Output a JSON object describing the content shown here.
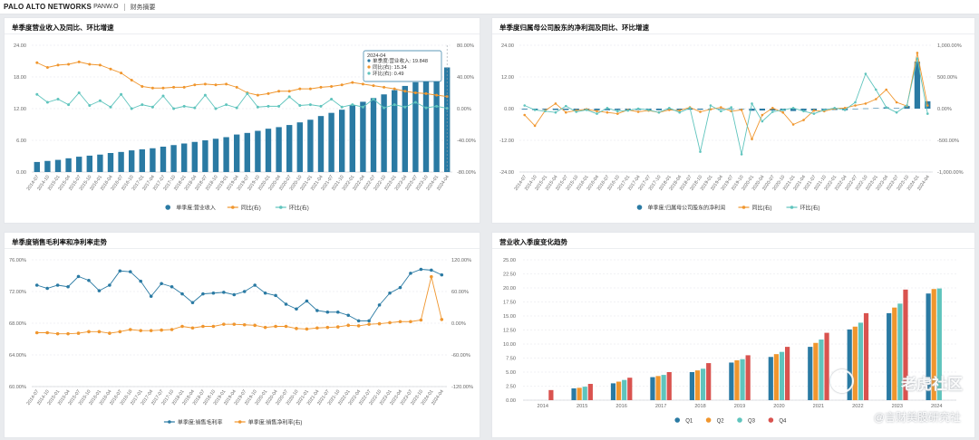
{
  "header": {
    "brand": "PALO ALTO NETWORKS",
    "ticker": "PANW.O",
    "section": "财务摘要"
  },
  "colors": {
    "blue": "#2a7aa3",
    "orange": "#f0962e",
    "teal": "#5fc4bd",
    "red": "#d9534f"
  },
  "watermark": {
    "main": "老虎社区",
    "sub": "@言财美股研究社"
  },
  "panels": [
    {
      "title": "单季度营业收入及同比、环比增速"
    },
    {
      "title": "单季度归属母公司股东的净利润及同比、环比增速"
    },
    {
      "title": "单季度销售毛利率和净利率走势"
    },
    {
      "title": "营业收入季度变化趋势"
    }
  ],
  "tooltip": {
    "date": "2024-04",
    "rows": [
      "单季度:营业收入: 19.848",
      "同比(右): 15.34",
      "环比(右): 0.49"
    ]
  },
  "chart_data": [
    {
      "type": "bar",
      "title": "单季度营业收入及同比、环比增速",
      "xlabels": [
        "2014-07",
        "2014-10",
        "2015-01",
        "2015-04",
        "2015-07",
        "2015-10",
        "2016-01",
        "2016-04",
        "2016-07",
        "2016-10",
        "2017-01",
        "2017-04",
        "2017-07",
        "2017-10",
        "2018-01",
        "2018-04",
        "2018-07",
        "2018-10",
        "2019-01",
        "2019-04",
        "2019-07",
        "2019-10",
        "2020-01",
        "2020-04",
        "2020-07",
        "2020-10",
        "2021-01",
        "2021-04",
        "2021-07",
        "2021-10",
        "2022-01",
        "2022-04",
        "2022-07",
        "2022-10",
        "2023-01",
        "2023-04",
        "2023-07",
        "2023-10",
        "2024-01",
        "2024-04"
      ],
      "left_axis": {
        "ticks": [
          "0.00",
          "6.00",
          "12.00",
          "18.00",
          "24.00"
        ],
        "min": 0,
        "max": 24
      },
      "right_axis": {
        "ticks": [
          "-80.00%",
          "-40.00%",
          "0.00%",
          "40.00%",
          "80.00%"
        ],
        "min": -80,
        "max": 80
      },
      "series": [
        {
          "name": "单季度:营业收入",
          "kind": "bar",
          "axis": "left",
          "values": [
            1.9,
            2.1,
            2.3,
            2.6,
            2.9,
            3.1,
            3.3,
            3.6,
            3.8,
            4.1,
            4.3,
            4.5,
            4.8,
            5.1,
            5.4,
            5.7,
            6.0,
            6.3,
            6.6,
            7.1,
            7.4,
            7.8,
            8.2,
            8.5,
            8.9,
            9.4,
            9.9,
            10.6,
            11.2,
            11.8,
            12.6,
            13.3,
            14.0,
            14.7,
            15.5,
            16.3,
            17.0,
            17.9,
            19.0,
            19.8
          ]
        },
        {
          "name": "同比(右)",
          "kind": "line",
          "axis": "right",
          "values": [
            58,
            52,
            55,
            56,
            59,
            56,
            55,
            50,
            45,
            36,
            28,
            26,
            26,
            27,
            27,
            30,
            31,
            30,
            31,
            27,
            20,
            17,
            19,
            22,
            22,
            25,
            25,
            27,
            28,
            30,
            33,
            31,
            29,
            27,
            25,
            22,
            20,
            19,
            17,
            15.34
          ]
        },
        {
          "name": "环比(右)",
          "kind": "line",
          "axis": "right",
          "values": [
            18,
            8,
            12,
            5,
            20,
            4,
            10,
            2,
            18,
            0,
            5,
            2,
            16,
            0,
            3,
            1,
            17,
            0,
            5,
            1,
            19,
            2,
            3,
            3,
            15,
            4,
            5,
            3,
            12,
            2,
            5,
            2,
            12,
            1,
            5,
            2,
            8,
            1,
            3,
            0.49
          ]
        }
      ],
      "legend": [
        "单季度:营业收入",
        "同比(右)",
        "环比(右)"
      ]
    },
    {
      "type": "bar",
      "title": "单季度归属母公司股东的净利润及同比、环比增速",
      "xlabels": [
        "2014-07",
        "2014-10",
        "2015-01",
        "2015-04",
        "2015-07",
        "2015-10",
        "2016-01",
        "2016-04",
        "2016-07",
        "2016-10",
        "2017-01",
        "2017-04",
        "2017-07",
        "2017-10",
        "2018-01",
        "2018-04",
        "2018-07",
        "2018-10",
        "2019-01",
        "2019-04",
        "2019-07",
        "2019-10",
        "2020-01",
        "2020-04",
        "2020-07",
        "2020-10",
        "2021-01",
        "2021-04",
        "2021-07",
        "2021-10",
        "2022-01",
        "2022-04",
        "2022-07",
        "2022-10",
        "2023-01",
        "2023-04",
        "2023-07",
        "2023-10",
        "2024-01",
        "2024-04"
      ],
      "left_axis": {
        "ticks": [
          "-24.00",
          "-12.00",
          "0.00",
          "12.00",
          "24.00"
        ],
        "min": -24,
        "max": 24
      },
      "right_axis": {
        "ticks": [
          "-1,000.00%",
          "-500.00%",
          "0.00%",
          "500.00%",
          "1,000.00%"
        ],
        "min": -1000,
        "max": 1000
      },
      "series": [
        {
          "name": "单季度:归属母公司股东的净利润",
          "kind": "bar",
          "axis": "left",
          "values": [
            -0.3,
            -0.5,
            -0.4,
            -0.5,
            -0.5,
            -0.6,
            -0.6,
            -0.6,
            -0.6,
            -0.5,
            -0.6,
            -0.5,
            -0.5,
            -0.6,
            -0.4,
            -0.5,
            -0.4,
            -0.4,
            -0.2,
            -0.1,
            -0.1,
            -0.2,
            -0.8,
            -0.7,
            -0.7,
            -0.8,
            -0.9,
            -0.8,
            -0.7,
            -0.5,
            -0.5,
            -0.6,
            -0.2,
            0.1,
            0.2,
            0.5,
            0.2,
            1.0,
            17.8,
            2.8
          ]
        },
        {
          "name": "同比(右)",
          "kind": "line",
          "axis": "right",
          "values": [
            -100,
            -270,
            -30,
            80,
            -60,
            -30,
            -10,
            -40,
            -60,
            -80,
            -20,
            -50,
            -30,
            -60,
            -20,
            -30,
            20,
            -50,
            -10,
            20,
            -40,
            -20,
            -480,
            -100,
            10,
            -60,
            -250,
            -180,
            -30,
            -40,
            0,
            10,
            50,
            80,
            150,
            300,
            100,
            40,
            880,
            50
          ]
        },
        {
          "name": "环比(右)",
          "kind": "line",
          "axis": "right",
          "values": [
            50,
            -20,
            -40,
            -60,
            40,
            -50,
            -20,
            -80,
            10,
            -40,
            -30,
            0,
            -20,
            -60,
            10,
            -60,
            10,
            -680,
            50,
            -40,
            20,
            -720,
            80,
            -200,
            -50,
            -20,
            10,
            -40,
            -80,
            -20,
            10,
            -20,
            100,
            550,
            300,
            20,
            -60,
            50,
            790,
            -80
          ]
        }
      ],
      "legend": [
        "单季度:归属母公司股东的净利润",
        "同比(右)",
        "环比(右)"
      ]
    },
    {
      "type": "line",
      "title": "单季度销售毛利率和净利率走势",
      "xlabels": [
        "2014-07",
        "2014-10",
        "2015-01",
        "2015-04",
        "2015-07",
        "2015-10",
        "2016-01",
        "2016-04",
        "2016-07",
        "2016-10",
        "2017-01",
        "2017-04",
        "2017-07",
        "2017-10",
        "2018-01",
        "2018-04",
        "2018-07",
        "2018-10",
        "2019-01",
        "2019-04",
        "2019-07",
        "2019-10",
        "2020-01",
        "2020-04",
        "2020-07",
        "2020-10",
        "2021-01",
        "2021-04",
        "2021-07",
        "2021-10",
        "2022-01",
        "2022-04",
        "2022-07",
        "2022-10",
        "2023-01",
        "2023-04",
        "2023-07",
        "2023-10",
        "2024-01",
        "2024-04"
      ],
      "left_axis": {
        "ticks": [
          "60.00%",
          "64.00%",
          "68.00%",
          "72.00%",
          "76.00%"
        ],
        "min": 60,
        "max": 76
      },
      "right_axis": {
        "ticks": [
          "-120.00%",
          "-60.00%",
          "0.00%",
          "60.00%",
          "120.00%"
        ],
        "min": -120,
        "max": 120
      },
      "series": [
        {
          "name": "单季度:销售毛利率",
          "kind": "line",
          "axis": "left",
          "values": [
            72.8,
            72.4,
            72.8,
            72.6,
            73.9,
            73.4,
            72.1,
            72.8,
            74.6,
            74.5,
            73.3,
            71.4,
            73.0,
            72.6,
            71.7,
            70.6,
            71.7,
            71.8,
            71.9,
            71.6,
            72.0,
            72.8,
            71.8,
            71.5,
            70.4,
            69.8,
            70.8,
            69.6,
            69.4,
            69.4,
            69.0,
            68.3,
            68.3,
            70.3,
            71.8,
            72.5,
            74.3,
            74.8,
            74.7,
            74.1
          ]
        },
        {
          "name": "单季度:销售净利率(右)",
          "kind": "line",
          "axis": "right",
          "values": [
            -18,
            -18,
            -20,
            -20,
            -19,
            -16,
            -16,
            -19,
            -16,
            -12,
            -14,
            -14,
            -13,
            -12,
            -6,
            -9,
            -6,
            -6,
            -2,
            -2,
            -3,
            -4,
            -8,
            -6,
            -6,
            -10,
            -11,
            -9,
            -8,
            -7,
            -4,
            -5,
            -2,
            -1,
            1,
            3,
            3,
            6,
            88,
            7
          ]
        }
      ],
      "legend": [
        "单季度:销售毛利率",
        "单季度:销售净利率(右)"
      ]
    },
    {
      "type": "bar",
      "title": "营业收入季度变化趋势",
      "categories": [
        "2014",
        "2015",
        "2016",
        "2017",
        "2018",
        "2019",
        "2020",
        "2021",
        "2022",
        "2023",
        "2024"
      ],
      "y_ticks": [
        "0.00",
        "2.50",
        "5.00",
        "7.50",
        "10.00",
        "12.50",
        "15.00",
        "17.50",
        "20.00",
        "22.50",
        "25.00"
      ],
      "ylim": [
        0,
        25
      ],
      "series": [
        {
          "name": "Q1",
          "values": [
            null,
            2.1,
            3.0,
            4.1,
            5.0,
            6.7,
            7.7,
            9.5,
            12.6,
            15.5,
            19.0
          ]
        },
        {
          "name": "Q2",
          "values": [
            null,
            2.2,
            3.3,
            4.3,
            5.3,
            7.1,
            8.2,
            10.2,
            13.1,
            16.5,
            19.8
          ]
        },
        {
          "name": "Q3",
          "values": [
            null,
            2.4,
            3.6,
            4.5,
            5.6,
            7.3,
            8.6,
            10.8,
            13.8,
            17.2,
            19.9
          ]
        },
        {
          "name": "Q4",
          "values": [
            1.8,
            2.9,
            4.0,
            5.0,
            6.6,
            8.0,
            9.5,
            12.0,
            15.5,
            19.7,
            null
          ]
        }
      ],
      "legend": [
        "Q1",
        "Q2",
        "Q3",
        "Q4"
      ]
    }
  ]
}
